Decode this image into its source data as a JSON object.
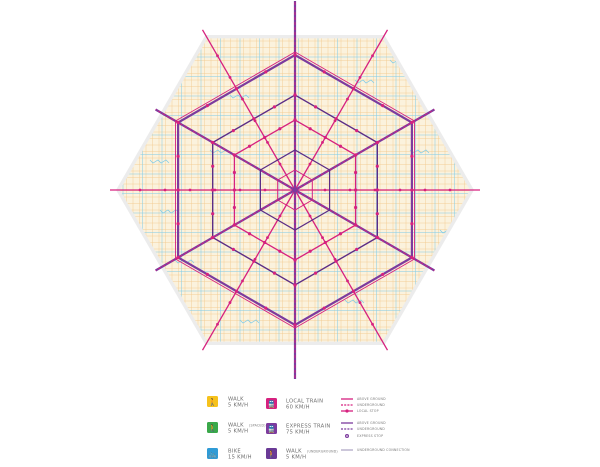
{
  "colors": {
    "background": "#ffffff",
    "grid_fill": "#fbf2dd",
    "grid_orange": "#f2c98f",
    "grid_blue": "#7ecbe8",
    "outer_gray": "#ececec",
    "ring_purple": "#5c2d86",
    "ring_magenta": "#e0338c",
    "walk_yellow": "#f6c21c",
    "walk_green": "#3aa84a",
    "bike_blue": "#2f9bd6",
    "local_train_magenta": "#d6217f",
    "express_train_purple": "#7c3b9e",
    "walk_underground_purple": "#6a3a96"
  },
  "legend": {
    "modes": [
      {
        "icon": "walk-icon",
        "color": "#f6c21c",
        "line1": "WALK",
        "line2": "5 KM/H",
        "small": ""
      },
      {
        "icon": "walk-icon",
        "color": "#3aa84a",
        "line1": "WALK",
        "line2": "5 KM/H",
        "small": "(SPACED)"
      },
      {
        "icon": "bike-icon",
        "color": "#2f9bd6",
        "line1": "BIKE",
        "line2": "15 KM/H",
        "small": ""
      },
      {
        "icon": "train-icon",
        "color": "#d6217f",
        "line1": "LOCAL TRAIN",
        "line2": "60 KM/H",
        "small": ""
      },
      {
        "icon": "train-icon",
        "color": "#7c3b9e",
        "line1": "EXPRESS TRAIN",
        "line2": "75 KM/H",
        "small": ""
      },
      {
        "icon": "walk-icon",
        "color": "#6a3a96",
        "line1": "WALK",
        "line2": "5 KM/H",
        "small": "(UNDERGROUND)"
      }
    ],
    "lines": [
      {
        "label": "ABOVE GROUND",
        "style": "solid",
        "color": "#d6217f"
      },
      {
        "label": "UNDERGROUND",
        "style": "dashed",
        "color": "#d6217f"
      },
      {
        "label": "LOCAL STOP",
        "style": "stop",
        "color": "#d6217f"
      },
      {
        "label": "ABOVE GROUND",
        "style": "solid",
        "color": "#7c3b9e"
      },
      {
        "label": "UNDERGROUND",
        "style": "dashed",
        "color": "#7c3b9e"
      },
      {
        "label": "EXPRESS STOP",
        "style": "stop",
        "color": "#7c3b9e"
      },
      {
        "label": "UNDERGROUND CONNECTION",
        "style": "solid",
        "color": "#9a8fb5"
      }
    ]
  }
}
